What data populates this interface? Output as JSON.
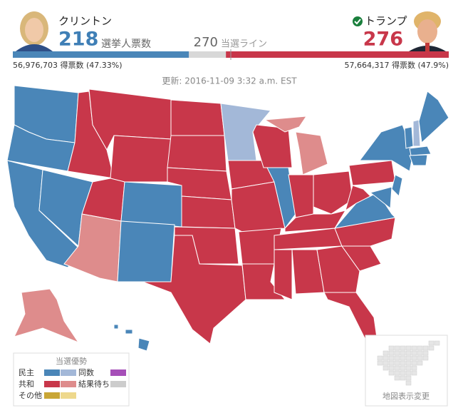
{
  "header": {
    "left": {
      "name": "クリントン",
      "electoral_votes": 218,
      "electoral_label": "選挙人票数",
      "popular": "56,976,703 得票数 (47.33%)"
    },
    "right": {
      "name": "トランプ",
      "electoral_votes": 276,
      "popular": "57,664,317 得票数 (47.9%)"
    },
    "threshold": {
      "value": 270,
      "label": "当選ライン"
    }
  },
  "updated": "更新: 2016-11-09 3:32 a.m. EST",
  "legend": {
    "title": "当選優勢",
    "rows": [
      "民主",
      "共和",
      "その他"
    ],
    "extra": [
      "同数",
      "結果待ち"
    ]
  },
  "toggle_button": "地図表示変更"
}
